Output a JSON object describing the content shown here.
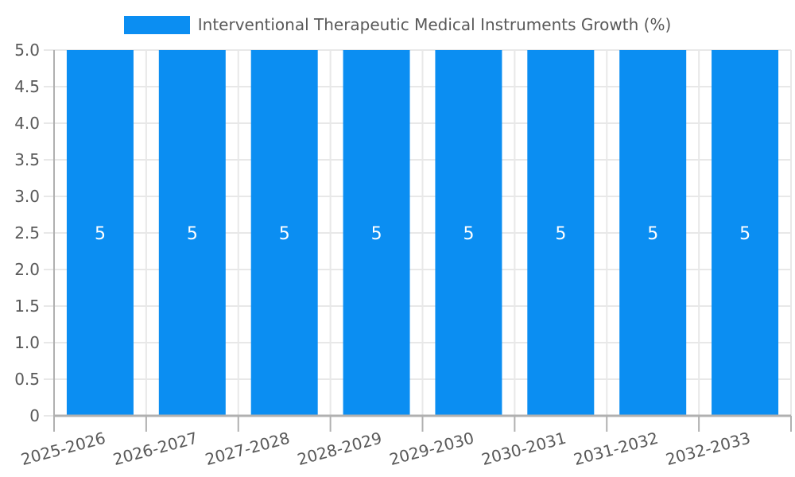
{
  "legend": {
    "position": "top",
    "entries": [
      {
        "label": "Interventional Therapeutic Medical Instruments Growth (%)",
        "swatch_color": "#0b8ef2"
      }
    ]
  },
  "chart_data": {
    "type": "bar",
    "title": "",
    "legend_entries": [
      "Interventional Therapeutic Medical Instruments Growth (%)"
    ],
    "legend_position": "top",
    "categories": [
      "2025-2026",
      "2026-2027",
      "2027-2028",
      "2028-2029",
      "2029-2030",
      "2030-2031",
      "2031-2032",
      "2032-2033"
    ],
    "series": [
      {
        "name": "Interventional Therapeutic Medical Instruments Growth (%)",
        "values": [
          5,
          5,
          5,
          5,
          5,
          5,
          5,
          5
        ]
      }
    ],
    "bar_value_labels": [
      "5",
      "5",
      "5",
      "5",
      "5",
      "5",
      "5",
      "5"
    ],
    "xlabel": "",
    "ylabel": "",
    "ylim": [
      0,
      5
    ],
    "y_tick_step": 0.5,
    "y_tick_labels": [
      "0",
      "0.5",
      "1.0",
      "1.5",
      "2.0",
      "2.5",
      "3.0",
      "3.5",
      "4.0",
      "4.5",
      "5.0"
    ],
    "x_label_rotation_deg": -15,
    "grid": true,
    "colors": {
      "bar": "#0b8ef2",
      "bar_value_text": "#ffffff",
      "axis_line": "#b0b0b0",
      "grid_line": "#e8e8e8",
      "tick_text": "#595959",
      "legend_text": "#595959",
      "background": "#ffffff"
    }
  }
}
